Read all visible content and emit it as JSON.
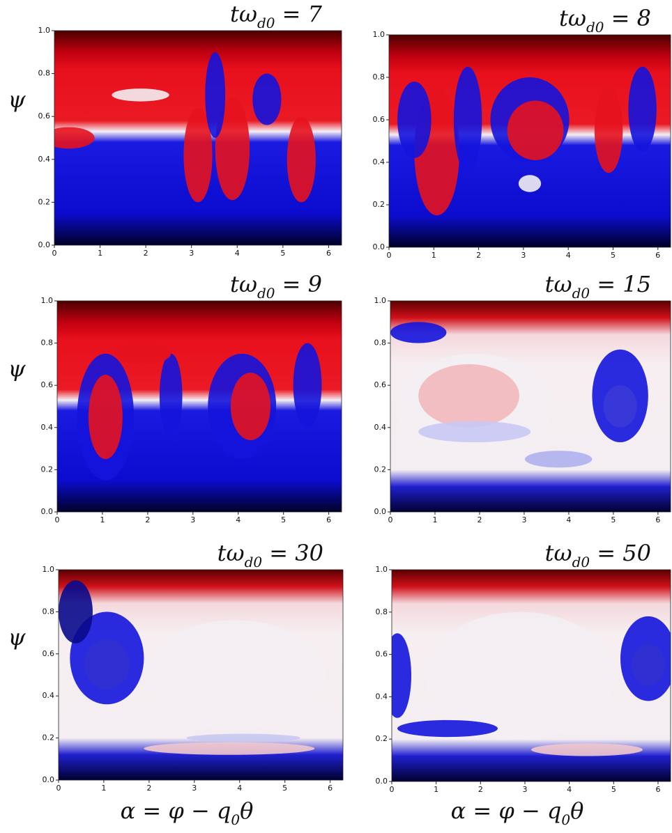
{
  "chart_data": [
    {
      "type": "heatmap",
      "title": {
        "text": "tω",
        "subscript": "d0",
        "suffix": " = 7"
      },
      "ylabel": "ψ",
      "xlim": [
        0,
        6.283
      ],
      "xticks": [
        0,
        1,
        2,
        3,
        4,
        5,
        6
      ],
      "ylim": [
        0,
        1
      ],
      "yticks": [
        {
          "value": 0,
          "label": "0.0"
        },
        {
          "value": 0.2,
          "label": "0.2"
        },
        {
          "value": 0.4,
          "label": "0.4"
        },
        {
          "value": 0.6,
          "label": "0.6"
        },
        {
          "value": 0.8,
          "label": "0.8"
        },
        {
          "value": 1,
          "label": "1.0"
        }
      ]
    },
    {
      "type": "heatmap",
      "title": {
        "text": "tω",
        "subscript": "d0",
        "suffix": " = 8"
      },
      "xlim": [
        0,
        6.283
      ],
      "xticks": [
        0,
        1,
        2,
        3,
        4,
        5,
        6
      ],
      "ylim": [
        0,
        1
      ],
      "yticks": [
        {
          "value": 0,
          "label": "0.0"
        },
        {
          "value": 0.2,
          "label": "0.2"
        },
        {
          "value": 0.4,
          "label": "0.4"
        },
        {
          "value": 0.6,
          "label": "0.6"
        },
        {
          "value": 0.8,
          "label": "0.8"
        },
        {
          "value": 1,
          "label": "1.0"
        }
      ]
    },
    {
      "type": "heatmap",
      "title": {
        "text": "tω",
        "subscript": "d0",
        "suffix": " = 9"
      },
      "ylabel": "ψ",
      "xlim": [
        0,
        6.283
      ],
      "xticks": [
        0,
        1,
        2,
        3,
        4,
        5,
        6
      ],
      "ylim": [
        0,
        1
      ],
      "yticks": [
        {
          "value": 0,
          "label": "0.0"
        },
        {
          "value": 0.2,
          "label": "0.2"
        },
        {
          "value": 0.4,
          "label": "0.4"
        },
        {
          "value": 0.6,
          "label": "0.6"
        },
        {
          "value": 0.8,
          "label": "0.8"
        },
        {
          "value": 1,
          "label": "1.0"
        }
      ]
    },
    {
      "type": "heatmap",
      "title": {
        "text": "tω",
        "subscript": "d0",
        "suffix": " = 15"
      },
      "xlim": [
        0,
        6.283
      ],
      "xticks": [
        0,
        1,
        2,
        3,
        4,
        5,
        6
      ],
      "ylim": [
        0,
        1
      ],
      "yticks": [
        {
          "value": 0,
          "label": "0.0"
        },
        {
          "value": 0.2,
          "label": "0.2"
        },
        {
          "value": 0.4,
          "label": "0.4"
        },
        {
          "value": 0.6,
          "label": "0.6"
        },
        {
          "value": 0.8,
          "label": "0.8"
        },
        {
          "value": 1,
          "label": "1.0"
        }
      ]
    },
    {
      "type": "heatmap",
      "title": {
        "text": "tω",
        "subscript": "d0",
        "suffix": " = 30"
      },
      "ylabel": "ψ",
      "xlabel": {
        "text": "α = φ − q",
        "subscript": "0",
        "suffix": "θ"
      },
      "xlim": [
        0,
        6.283
      ],
      "xticks": [
        0,
        1,
        2,
        3,
        4,
        5,
        6
      ],
      "ylim": [
        0,
        1
      ],
      "yticks": [
        {
          "value": 0,
          "label": "0.0"
        },
        {
          "value": 0.2,
          "label": "0.2"
        },
        {
          "value": 0.4,
          "label": "0.4"
        },
        {
          "value": 0.6,
          "label": "0.6"
        },
        {
          "value": 0.8,
          "label": "0.8"
        },
        {
          "value": 1,
          "label": "1.0"
        }
      ]
    },
    {
      "type": "heatmap",
      "title": {
        "text": "tω",
        "subscript": "d0",
        "suffix": " = 50"
      },
      "xlabel": {
        "text": "α = φ − q",
        "subscript": "0",
        "suffix": "θ"
      },
      "xlim": [
        0,
        6.283
      ],
      "xticks": [
        0,
        1,
        2,
        3,
        4,
        5,
        6
      ],
      "ylim": [
        0,
        1
      ],
      "yticks": [
        {
          "value": 0,
          "label": "0.0"
        },
        {
          "value": 0.2,
          "label": "0.2"
        },
        {
          "value": 0.4,
          "label": "0.4"
        },
        {
          "value": 0.6,
          "label": "0.6"
        },
        {
          "value": 0.8,
          "label": "0.8"
        },
        {
          "value": 1,
          "label": "1.0"
        }
      ]
    }
  ]
}
